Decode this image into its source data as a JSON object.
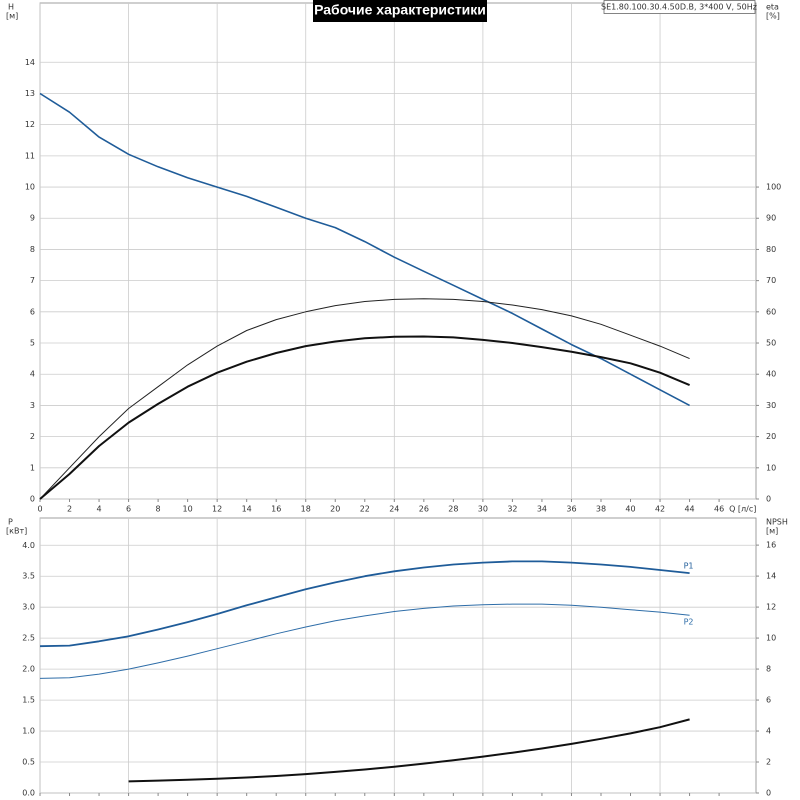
{
  "chart_data": [
    {
      "type": "line",
      "title": "Рабочие характеристики",
      "annotation": "SE1.80.100.30.4.50D.B, 3*400 V, 50Hz",
      "y_label": "H",
      "y_unit": "[м]",
      "y2_label": "eta",
      "y2_unit": "[%]",
      "x_label": "Q [л/с]",
      "x": [
        0,
        2,
        4,
        6,
        8,
        10,
        12,
        14,
        16,
        18,
        20,
        22,
        24,
        26,
        28,
        30,
        32,
        34,
        36,
        38,
        40,
        42,
        44
      ],
      "xlim": [
        0,
        48.5
      ],
      "xticks": [
        0,
        2,
        4,
        6,
        8,
        10,
        12,
        14,
        16,
        18,
        20,
        22,
        24,
        26,
        28,
        30,
        32,
        34,
        36,
        38,
        40,
        42,
        44,
        46
      ],
      "ylim": [
        0,
        15.9
      ],
      "yticks": [
        0,
        1,
        2,
        3,
        4,
        5,
        6,
        7,
        8,
        9,
        10,
        11,
        12,
        13,
        14
      ],
      "y2lim": [
        0,
        159
      ],
      "y2ticks": [
        0,
        10,
        20,
        30,
        40,
        50,
        60,
        70,
        80,
        90,
        100
      ],
      "grid": true,
      "series": [
        {
          "color": "#1f5c99",
          "width": 1.6,
          "values": [
            13,
            12.4,
            11.6,
            11.05,
            10.65,
            10.3,
            10.0,
            9.7,
            9.35,
            9.0,
            8.7,
            8.25,
            7.75,
            7.3,
            6.85,
            6.4,
            5.95,
            5.45,
            4.95,
            4.5,
            4.0,
            3.5,
            3.0
          ]
        },
        {
          "color": "#222222",
          "width": 1,
          "axis": "y2",
          "values": [
            0,
            10,
            20,
            29,
            36,
            43,
            49,
            54,
            57.5,
            60,
            62,
            63.3,
            64,
            64.2,
            64,
            63.3,
            62.2,
            60.7,
            58.7,
            56,
            52.5,
            49,
            45
          ]
        },
        {
          "color": "#111111",
          "width": 2,
          "axis": "y2",
          "values": [
            0,
            8,
            17,
            24.5,
            30.5,
            36,
            40.5,
            44,
            46.8,
            49,
            50.5,
            51.5,
            52,
            52.1,
            51.8,
            51,
            50,
            48.7,
            47.2,
            45.5,
            43.5,
            40.5,
            36.5
          ]
        }
      ]
    },
    {
      "type": "line",
      "y_label": "P",
      "y_unit": "[кВт]",
      "y2_label": "NPSH",
      "y2_unit": "[м]",
      "x": [
        0,
        2,
        4,
        6,
        8,
        10,
        12,
        14,
        16,
        18,
        20,
        22,
        24,
        26,
        28,
        30,
        32,
        34,
        36,
        38,
        40,
        42,
        44
      ],
      "xlim": [
        0,
        48.5
      ],
      "ylim": [
        0,
        4.44
      ],
      "yticks": [
        {
          "value": 0,
          "label": "0.0"
        },
        {
          "value": 0.5,
          "label": "0.5"
        },
        {
          "value": 1,
          "label": "1.0"
        },
        {
          "value": 1.5,
          "label": "1.5"
        },
        {
          "value": 2,
          "label": "2.0"
        },
        {
          "value": 2.5,
          "label": "2.5"
        },
        {
          "value": 3,
          "label": "3.0"
        },
        {
          "value": 3.5,
          "label": "3.5"
        },
        {
          "value": 4,
          "label": "4.0"
        }
      ],
      "y2lim": [
        0,
        17.75
      ],
      "y2ticks": [
        0,
        2,
        4,
        6,
        8,
        10,
        12,
        14,
        16
      ],
      "grid": true,
      "series": [
        {
          "name": "P1",
          "color": "#1f5c99",
          "width": 1.8,
          "values": [
            2.37,
            2.38,
            2.45,
            2.53,
            2.64,
            2.76,
            2.89,
            3.03,
            3.16,
            3.29,
            3.4,
            3.5,
            3.58,
            3.64,
            3.69,
            3.72,
            3.74,
            3.74,
            3.72,
            3.69,
            3.65,
            3.6,
            3.55
          ]
        },
        {
          "name": "P2",
          "color": "#2e6da8",
          "width": 1,
          "values": [
            1.85,
            1.86,
            1.92,
            2.0,
            2.1,
            2.21,
            2.33,
            2.45,
            2.57,
            2.68,
            2.78,
            2.86,
            2.93,
            2.98,
            3.02,
            3.04,
            3.05,
            3.05,
            3.03,
            3.0,
            2.96,
            2.92,
            2.87
          ]
        },
        {
          "color": "#111111",
          "width": 2,
          "axis": "y2",
          "values": [
            null,
            null,
            null,
            0.75,
            0.8,
            0.85,
            0.92,
            1.0,
            1.1,
            1.22,
            1.36,
            1.52,
            1.7,
            1.9,
            2.12,
            2.35,
            2.6,
            2.87,
            3.17,
            3.5,
            3.85,
            4.25,
            4.75
          ]
        }
      ]
    }
  ]
}
